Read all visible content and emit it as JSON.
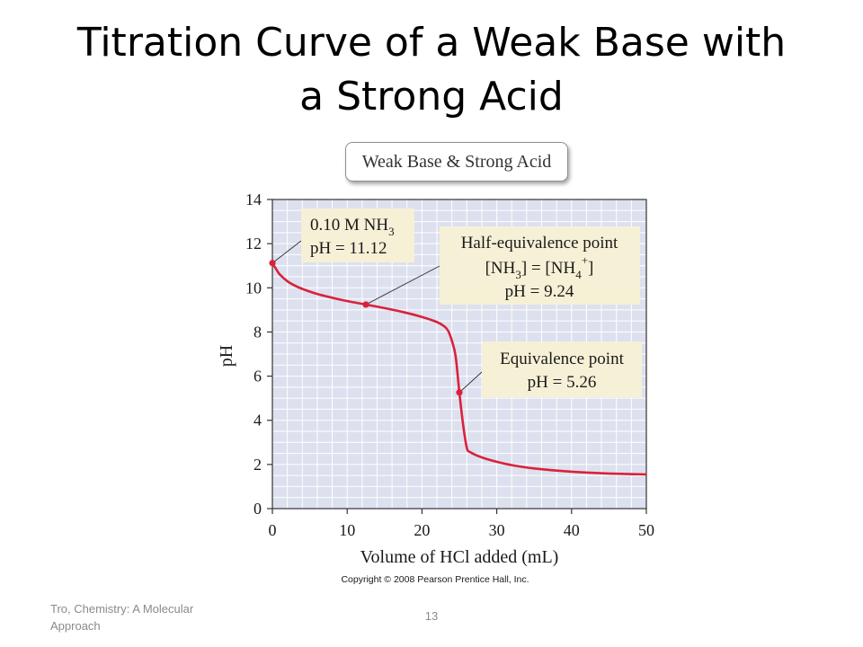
{
  "slide": {
    "title_line1": "Titration Curve of a Weak Base with",
    "title_line2": "a Strong Acid",
    "footer_source": "Tro, Chemistry: A Molecular Approach",
    "page_number": "13"
  },
  "chart_data": {
    "type": "line",
    "title": "Weak Base & Strong Acid",
    "xlabel": "Volume of HCl added (mL)",
    "ylabel": "pH",
    "xlim": [
      0,
      50
    ],
    "ylim": [
      0,
      14
    ],
    "xticks": [
      0,
      10,
      20,
      30,
      40,
      50
    ],
    "yticks": [
      0,
      2,
      4,
      6,
      8,
      10,
      12,
      14
    ],
    "grid": true,
    "copyright": "Copyright © 2008 Pearson Prentice Hall, Inc.",
    "colors": {
      "curve": "#d9213b",
      "plot_bg": "#dde0ee",
      "grid": "#ffffff",
      "callout_bg": "#f6f0d6"
    },
    "series": [
      {
        "values": [
          [
            0,
            11.12
          ],
          [
            0.5,
            10.85
          ],
          [
            1,
            10.6
          ],
          [
            2,
            10.3
          ],
          [
            3,
            10.1
          ],
          [
            4,
            9.95
          ],
          [
            6,
            9.72
          ],
          [
            8,
            9.55
          ],
          [
            10,
            9.4
          ],
          [
            12.5,
            9.24
          ],
          [
            15,
            9.08
          ],
          [
            17.5,
            8.9
          ],
          [
            20,
            8.68
          ],
          [
            22,
            8.45
          ],
          [
            23,
            8.25
          ],
          [
            23.5,
            8.05
          ],
          [
            24,
            7.6
          ],
          [
            24.5,
            6.9
          ],
          [
            25,
            5.26
          ],
          [
            25.5,
            3.8
          ],
          [
            26,
            2.75
          ],
          [
            26.5,
            2.55
          ],
          [
            28,
            2.32
          ],
          [
            30,
            2.12
          ],
          [
            32,
            1.97
          ],
          [
            35,
            1.82
          ],
          [
            40,
            1.67
          ],
          [
            45,
            1.59
          ],
          [
            50,
            1.55
          ]
        ]
      }
    ],
    "marked_points": [
      {
        "x": 0,
        "y": 11.12
      },
      {
        "x": 12.5,
        "y": 9.24
      },
      {
        "x": 25,
        "y": 5.26
      }
    ],
    "annotations": [
      {
        "line1": "0.10 M NH",
        "line1_sub": "3",
        "line2": "pH = 11.12"
      },
      {
        "line1": "Half-equivalence point",
        "eq_lhs_a": "[NH",
        "eq_lhs_sub": "3",
        "eq_mid": "] = [NH",
        "eq_rhs_sub": "4",
        "eq_rhs_sup": "+",
        "eq_end": "]",
        "line3": "pH = 9.24"
      },
      {
        "line1": "Equivalence point",
        "line2": "pH = 5.26"
      }
    ]
  }
}
